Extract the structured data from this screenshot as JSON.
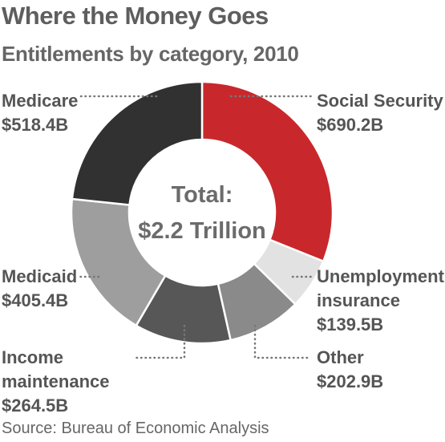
{
  "title": "Where the Money Goes",
  "subtitle": "Entitlements by category, 2010",
  "source": "Source: Bureau of Economic Analysis",
  "chart_data": {
    "type": "pie",
    "donut": true,
    "center_label": [
      "Total:",
      "$2.2 Trillion"
    ],
    "slices": [
      {
        "name": "Social Security",
        "label_lines": [
          "Social Security"
        ],
        "value": 690.2,
        "value_label": "$690.2B",
        "color": "#c8282c"
      },
      {
        "name": "Unemployment insurance",
        "label_lines": [
          "Unemployment",
          "insurance"
        ],
        "value": 139.5,
        "value_label": "$139.5B",
        "color": "#e2e2e2"
      },
      {
        "name": "Other",
        "label_lines": [
          "Other"
        ],
        "value": 202.9,
        "value_label": "$202.9B",
        "color": "#8a8a8a"
      },
      {
        "name": "Income maintenance",
        "label_lines": [
          "Income",
          "maintenance"
        ],
        "value": 264.5,
        "value_label": "$264.5B",
        "color": "#575757"
      },
      {
        "name": "Medicaid",
        "label_lines": [
          "Medicaid"
        ],
        "value": 405.4,
        "value_label": "$405.4B",
        "color": "#9e9e9e"
      },
      {
        "name": "Medicare",
        "label_lines": [
          "Medicare"
        ],
        "value": 518.4,
        "value_label": "$518.4B",
        "color": "#313131"
      }
    ]
  }
}
